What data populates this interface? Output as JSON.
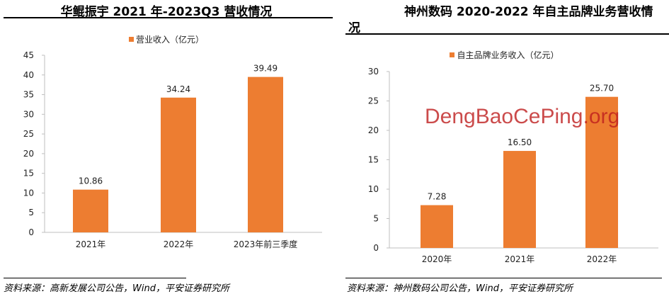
{
  "chart_data": [
    {
      "type": "bar",
      "title": "华鲲振宇 2021 年-2023Q3 营收情况",
      "legend": "营业收入（亿元）",
      "legend_position": "top-center",
      "categories": [
        "2021年",
        "2022年",
        "2023年前三季度"
      ],
      "values": [
        10.86,
        34.24,
        39.49
      ],
      "value_labels": [
        "10.86",
        "34.24",
        "39.49"
      ],
      "ylim": [
        0,
        45
      ],
      "yticks": [
        0,
        5,
        10,
        15,
        20,
        25,
        30,
        35,
        40,
        45
      ],
      "grid": false,
      "color": "#ED7D31",
      "source": "资料来源：高新发展公司公告，Wind，平安证券研究所"
    },
    {
      "type": "bar",
      "title_line1": "神州数码 2020-2022 年自主品牌业务营收情",
      "title_line2": "况",
      "legend": "自主品牌业务收入（亿元）",
      "legend_position": "top-center",
      "categories": [
        "2020年",
        "2021年",
        "2022年"
      ],
      "values": [
        7.28,
        16.5,
        25.7
      ],
      "value_labels": [
        "7.28",
        "16.50",
        "25.70"
      ],
      "ylim": [
        0,
        30
      ],
      "yticks": [
        0,
        5,
        10,
        15,
        20,
        25,
        30
      ],
      "grid": false,
      "color": "#ED7D31",
      "source": "资料来源：神州数码公司公告，Wind，平安证券研究所"
    }
  ],
  "watermark": "DengBaoCePing.org"
}
